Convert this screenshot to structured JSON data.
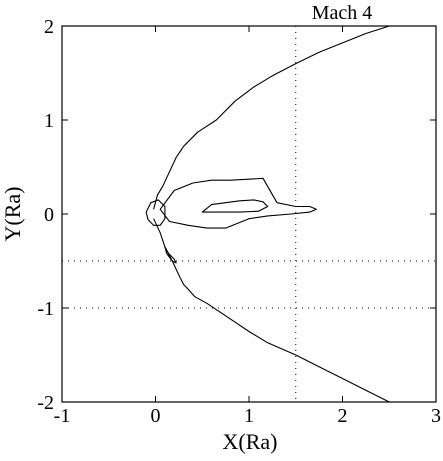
{
  "chart_data": {
    "type": "line",
    "title": "Mach 4",
    "xlabel": "X(Ra)",
    "ylabel": "Y(Ra)",
    "xlim": [
      -1,
      3
    ],
    "ylim": [
      -2,
      2
    ],
    "x_ticks": [
      -1,
      0,
      1,
      2,
      3
    ],
    "x_tick_labels": [
      "-1",
      "0",
      "1",
      "2",
      "3"
    ],
    "y_ticks": [
      -2,
      -1,
      0,
      1,
      2
    ],
    "y_tick_labels": [
      "-2",
      "-1",
      "0",
      "1",
      "2"
    ],
    "grid": false,
    "colors": {
      "line": "#000000",
      "background": "#ffffff"
    },
    "reference_lines": [
      {
        "orientation": "vertical",
        "x": 1.5,
        "style": "dotted"
      },
      {
        "orientation": "horizontal",
        "y": -0.5,
        "style": "dotted"
      },
      {
        "orientation": "horizontal",
        "y": -1.0,
        "style": "dotted"
      }
    ],
    "series": [
      {
        "kind": "bow-shock-upper",
        "x": [
          -0.02,
          0.02,
          0.08,
          0.15,
          0.22,
          0.3,
          0.45,
          0.65,
          0.85,
          1.05,
          1.25,
          1.5,
          1.75,
          2.0,
          2.25,
          2.5
        ],
        "y": [
          0.05,
          0.2,
          0.3,
          0.45,
          0.6,
          0.72,
          0.87,
          1.0,
          1.2,
          1.35,
          1.47,
          1.6,
          1.72,
          1.82,
          1.92,
          2.0
        ]
      },
      {
        "kind": "bow-shock-lower",
        "x": [
          -0.02,
          0.05,
          0.1,
          0.18,
          0.25,
          0.3,
          0.35,
          0.42,
          0.55,
          0.7,
          0.85,
          1.0,
          1.2,
          1.5,
          1.8,
          2.1,
          2.5
        ],
        "y": [
          -0.05,
          -0.2,
          -0.35,
          -0.5,
          -0.65,
          -0.75,
          -0.8,
          -0.88,
          -0.95,
          -1.05,
          -1.15,
          -1.25,
          -1.37,
          -1.5,
          -1.65,
          -1.8,
          -2.0
        ]
      },
      {
        "kind": "tail-contour-outer",
        "closed": true,
        "x": [
          0.05,
          0.2,
          0.4,
          0.6,
          0.8,
          1.0,
          1.15,
          1.3,
          1.5,
          1.65,
          1.72,
          1.65,
          1.45,
          1.2,
          1.0,
          0.75,
          0.55,
          0.35,
          0.15,
          0.05
        ],
        "y": [
          0.05,
          0.25,
          0.33,
          0.36,
          0.36,
          0.37,
          0.38,
          0.12,
          0.08,
          0.08,
          0.05,
          0.02,
          0.0,
          -0.02,
          -0.05,
          -0.15,
          -0.15,
          -0.12,
          -0.08,
          0.05
        ]
      },
      {
        "kind": "tail-contour-inner",
        "closed": true,
        "x": [
          0.5,
          0.6,
          0.75,
          0.9,
          1.05,
          1.15,
          1.2,
          1.1,
          0.9,
          0.7,
          0.5
        ],
        "y": [
          0.02,
          0.1,
          0.12,
          0.14,
          0.15,
          0.13,
          0.08,
          0.03,
          0.02,
          0.02,
          0.02
        ]
      },
      {
        "kind": "lower-lobe",
        "closed": true,
        "x": [
          0.1,
          0.14,
          0.2,
          0.22,
          0.18,
          0.12,
          0.1
        ],
        "y": [
          -0.35,
          -0.42,
          -0.48,
          -0.52,
          -0.5,
          -0.42,
          -0.35
        ]
      },
      {
        "kind": "small-contours",
        "closed": true,
        "x": [
          -0.1,
          -0.05,
          0.03,
          0.1,
          0.1,
          0.05,
          -0.02,
          -0.08,
          -0.1
        ],
        "y": [
          0.02,
          0.12,
          0.15,
          0.08,
          -0.05,
          -0.12,
          -0.12,
          -0.06,
          0.02
        ]
      }
    ]
  }
}
